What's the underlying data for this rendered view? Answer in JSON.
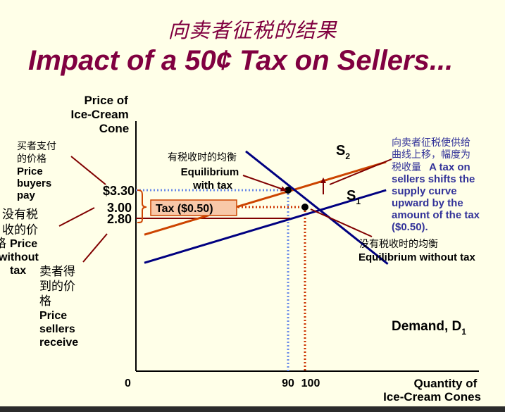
{
  "title_cn": "向卖者征税的结果",
  "title_en": "Impact of a 50¢ Tax on Sellers...",
  "colors": {
    "title": "#800040",
    "demand": "#000080",
    "supply_s1": "#000080",
    "supply_s2": "#cc4400",
    "note_text": "#333399",
    "tax_box_fill": "#f8c8a8",
    "tax_box_border": "#cc4400",
    "dotted_blue": "#6a8ae8",
    "dotted_red": "#cc3300",
    "arrow_line": "#800000"
  },
  "chart_data": {
    "type": "line",
    "title": "Impact of a 50¢ Tax on Sellers...",
    "ylabel": [
      "Price of",
      "Ice-Cream",
      "Cone"
    ],
    "xlabel": [
      "Quantity of",
      "Ice-Cream Cones"
    ],
    "origin_label": "0",
    "x_ticks": [
      {
        "value": 90,
        "label": "90"
      },
      {
        "value": 100,
        "label": "100"
      }
    ],
    "y_ticks": [
      {
        "value": 3.3,
        "label": "$3.30"
      },
      {
        "value": 3.0,
        "label": "3.00"
      },
      {
        "value": 2.8,
        "label": "2.80"
      }
    ],
    "series": [
      {
        "name": "Demand, D1",
        "label_main": "Demand, D",
        "label_sub": "1",
        "points": [
          [
            65,
            3.99
          ],
          [
            149,
            1.99
          ]
        ]
      },
      {
        "name": "S1",
        "label_main": "S",
        "label_sub": "1",
        "points": [
          [
            5,
            2.01
          ],
          [
            148,
            3.3
          ]
        ]
      },
      {
        "name": "S2",
        "label_main": "S",
        "label_sub": "2",
        "points": [
          [
            5,
            2.51
          ],
          [
            148,
            3.8
          ]
        ]
      }
    ],
    "equilibria": [
      {
        "name": "with tax",
        "x": 90,
        "y": 3.3
      },
      {
        "name": "without tax",
        "x": 100,
        "y": 3.0
      }
    ],
    "tax_label": "Tax ($0.50)"
  },
  "annotations": {
    "buyers_pay": {
      "cn": [
        "买者支付",
        "的价格"
      ],
      "en": [
        "Price",
        "buyers",
        "pay"
      ]
    },
    "without_tax": {
      "cn": [
        "没有税",
        "收的价",
        "格"
      ],
      "en_first": "Price",
      "en": [
        "without",
        "tax"
      ]
    },
    "sellers_receive": {
      "cn": [
        "卖者得",
        "到的价",
        "格"
      ],
      "en": [
        "Price",
        "sellers",
        "receive"
      ]
    },
    "eq_with_tax": {
      "cn": "有税收时的均衡",
      "en": [
        "Equilibrium",
        "with tax"
      ]
    },
    "eq_without_tax": {
      "cn": "没有税收时的均衡",
      "en": "Equilibrium without tax"
    },
    "shift_note": {
      "cn": [
        "向卖者征税使供给",
        "曲线上移，幅度为"
      ],
      "mixed_cn": "税收量",
      "mixed_en": "A tax on",
      "en": [
        "sellers shifts the",
        "supply curve",
        "upward by the",
        "amount of the tax",
        "($0.50)."
      ]
    }
  }
}
